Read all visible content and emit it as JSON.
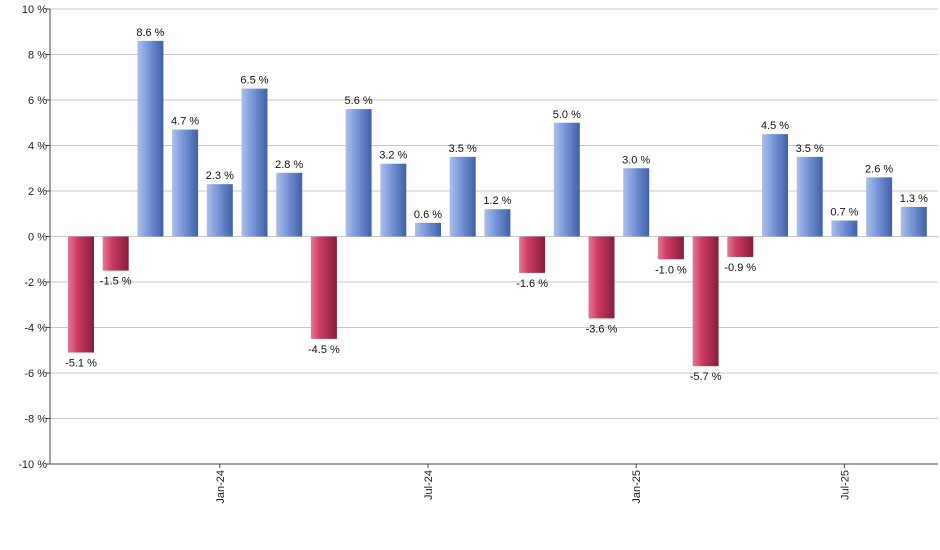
{
  "chart_data": {
    "type": "bar",
    "title": "",
    "xlabel": "",
    "ylabel": "",
    "ylim": [
      -10,
      10
    ],
    "y_tick_step": 2,
    "y_unit_suffix": " %",
    "grid": true,
    "legend": "none",
    "colors": {
      "positive": "#6f8fd8",
      "negative": "#c8305a",
      "grid": "#c8c8c8",
      "axis": "#444444"
    },
    "x_tick_labels": [
      {
        "label": "Jan-24",
        "at_index": 4
      },
      {
        "label": "Jul-24",
        "at_index": 10
      },
      {
        "label": "Jan-25",
        "at_index": 16
      },
      {
        "label": "Jul-25",
        "at_index": 22
      }
    ],
    "values": [
      -5.1,
      -1.5,
      8.6,
      4.7,
      2.3,
      6.5,
      2.8,
      -4.5,
      5.6,
      3.2,
      0.6,
      3.5,
      1.2,
      -1.6,
      5.0,
      -3.6,
      3.0,
      -1.0,
      -5.7,
      -0.9,
      4.5,
      3.5,
      0.7,
      2.6,
      1.3
    ],
    "value_labels": [
      "-5.1 %",
      "-1.5 %",
      "8.6 %",
      "4.7 %",
      "2.3 %",
      "6.5 %",
      "2.8 %",
      "-4.5 %",
      "5.6 %",
      "3.2 %",
      "0.6 %",
      "3.5 %",
      "1.2 %",
      "-1.6 %",
      "5.0 %",
      "-3.6 %",
      "3.0 %",
      "-1.0 %",
      "-5.7 %",
      "-0.9 %",
      "4.5 %",
      "3.5 %",
      "0.7 %",
      "2.6 %",
      "1.3 %"
    ]
  }
}
